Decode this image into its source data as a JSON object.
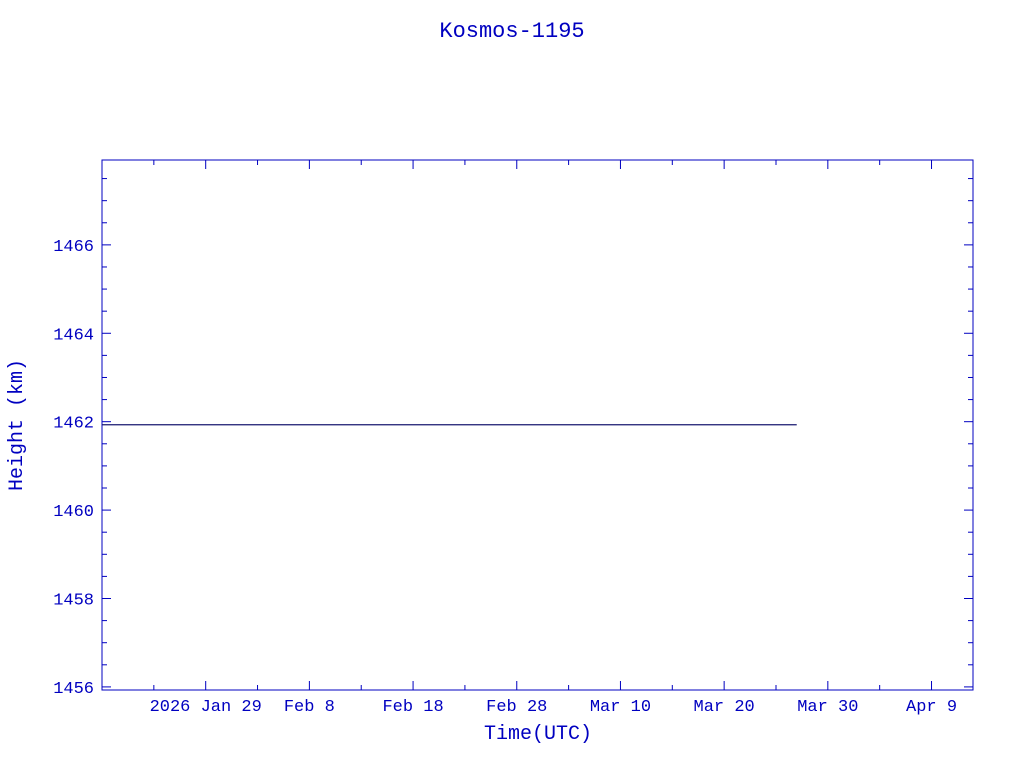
{
  "chart_data": {
    "type": "line",
    "title": "Kosmos-1195",
    "xlabel": "Time(UTC)",
    "ylabel": "Height (km)",
    "xlim": [
      "2026-01-19",
      "2026-04-13"
    ],
    "ylim": [
      1455.93,
      1467.92
    ],
    "x_ticks": [
      {
        "date": "2026-01-29",
        "label": "2026 Jan 29"
      },
      {
        "date": "2026-02-08",
        "label": "Feb  8"
      },
      {
        "date": "2026-02-18",
        "label": "Feb 18"
      },
      {
        "date": "2026-02-28",
        "label": "Feb 28"
      },
      {
        "date": "2026-03-10",
        "label": "Mar 10"
      },
      {
        "date": "2026-03-20",
        "label": "Mar 20"
      },
      {
        "date": "2026-03-30",
        "label": "Mar 30"
      },
      {
        "date": "2026-04-09",
        "label": "Apr  9"
      }
    ],
    "y_ticks": [
      1456,
      1458,
      1460,
      1462,
      1464,
      1466
    ],
    "grid": false,
    "series": [
      {
        "x": [
          "2026-01-19",
          "2026-03-27"
        ],
        "y": [
          1461.93,
          1461.93
        ],
        "color": "#1a1a70"
      }
    ],
    "colors": {
      "axes": "#0000c0",
      "line": "#1a1a70"
    }
  }
}
